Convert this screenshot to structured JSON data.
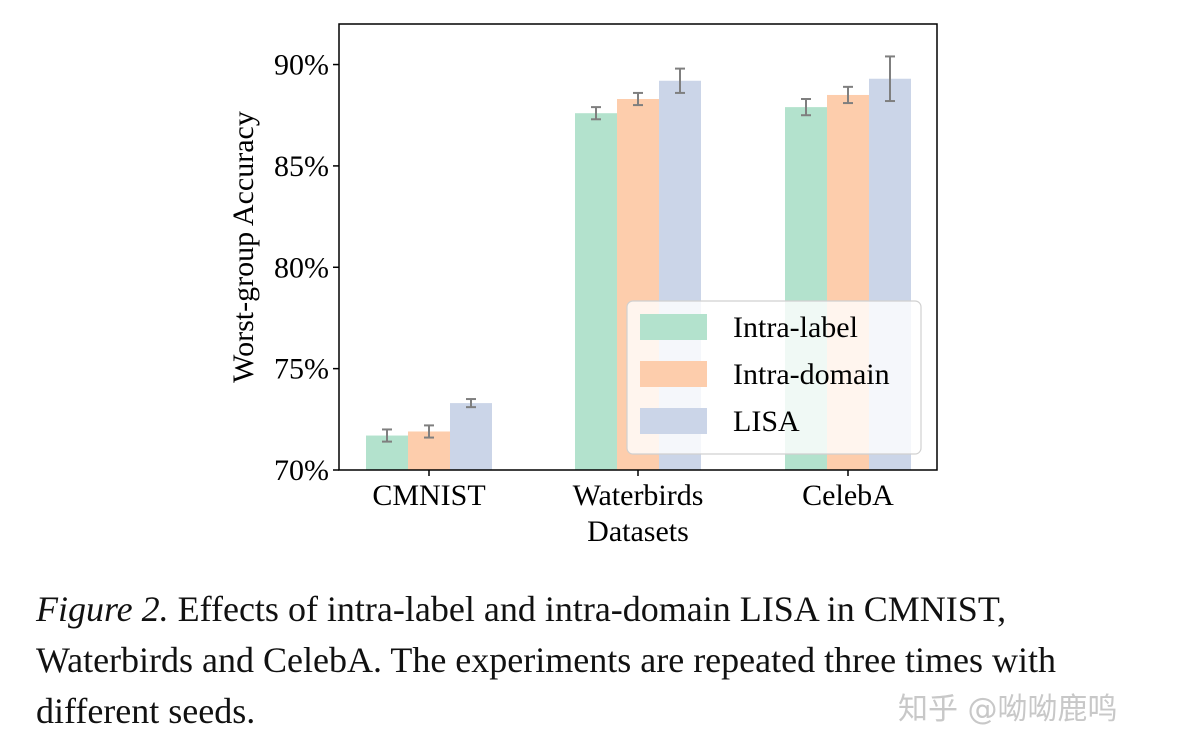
{
  "chart_data": {
    "type": "bar",
    "xlabel": "Datasets",
    "ylabel": "Worst-group Accuracy",
    "ylim": [
      70,
      92
    ],
    "yticks": [
      70,
      75,
      80,
      85,
      90
    ],
    "ytick_labels": [
      "70%",
      "75%",
      "80%",
      "85%",
      "90%"
    ],
    "categories": [
      "CMNIST",
      "Waterbirds",
      "CelebA"
    ],
    "legend_position": "lower-right",
    "series": [
      {
        "name": "Intra-label",
        "color": "#b3e2cd",
        "values": [
          71.7,
          87.6,
          87.9
        ],
        "errors": [
          0.3,
          0.3,
          0.4
        ]
      },
      {
        "name": "Intra-domain",
        "color": "#fdcdac",
        "values": [
          71.9,
          88.3,
          88.5
        ],
        "errors": [
          0.3,
          0.3,
          0.4
        ]
      },
      {
        "name": "LISA",
        "color": "#cbd5e8",
        "values": [
          73.3,
          89.2,
          89.3
        ],
        "errors": [
          0.2,
          0.6,
          1.1
        ]
      }
    ]
  },
  "caption": {
    "label": "Figure 2.",
    "text": " Effects of intra-label and intra-domain LISA in CMNIST, Waterbirds and CelebA. The experiments are repeated three times with different seeds."
  },
  "watermark": "知乎 @呦呦鹿鸣"
}
